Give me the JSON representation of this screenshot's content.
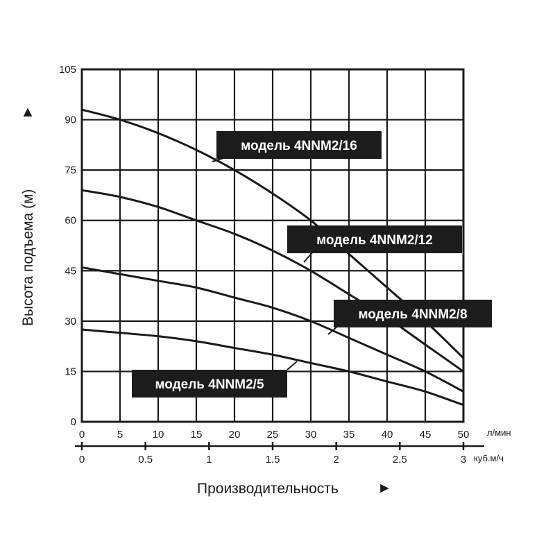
{
  "chart_data": {
    "type": "line",
    "title": "",
    "ylabel": "Высота подъема (м)",
    "ylabel_arrow": "►",
    "xlabel": "Производительность",
    "xlabel_arrow": "►",
    "ylim": [
      0,
      105
    ],
    "y_ticks": [
      "0",
      "15",
      "30",
      "45",
      "60",
      "75",
      "90",
      "105"
    ],
    "xlim": [
      0,
      50
    ],
    "x_unit": "л/мин",
    "x_ticks": [
      "0",
      "5",
      "10",
      "15",
      "20",
      "25",
      "30",
      "35",
      "40",
      "45",
      "50"
    ],
    "x2_unit": "куб.м/ч",
    "x2_ticks": [
      "0",
      "0.5",
      "1",
      "1.5",
      "2",
      "2.5",
      "3"
    ],
    "grid": true,
    "series": [
      {
        "name": "модель 4NNM2/16",
        "x": [
          0,
          5,
          10,
          15,
          20,
          25,
          30,
          35,
          40,
          45,
          50
        ],
        "y": [
          93,
          90,
          86,
          81,
          75,
          68,
          60,
          50,
          40,
          30,
          19
        ]
      },
      {
        "name": "модель 4NNM2/12",
        "x": [
          0,
          5,
          10,
          15,
          20,
          25,
          30,
          35,
          40,
          45,
          50
        ],
        "y": [
          69,
          67,
          64,
          60,
          56,
          51,
          45,
          38,
          31,
          23,
          15
        ]
      },
      {
        "name": "модель 4NNM2/8",
        "x": [
          0,
          5,
          10,
          15,
          20,
          25,
          30,
          35,
          40,
          45,
          50
        ],
        "y": [
          46,
          44,
          42,
          40,
          37,
          34,
          30,
          25,
          20,
          15,
          9
        ]
      },
      {
        "name": "модель 4NNM2/5",
        "x": [
          0,
          5,
          10,
          15,
          20,
          25,
          30,
          35,
          40,
          45,
          50
        ],
        "y": [
          27.5,
          26.5,
          25.5,
          24,
          22,
          20,
          17.5,
          15,
          12,
          9,
          5
        ]
      }
    ]
  }
}
